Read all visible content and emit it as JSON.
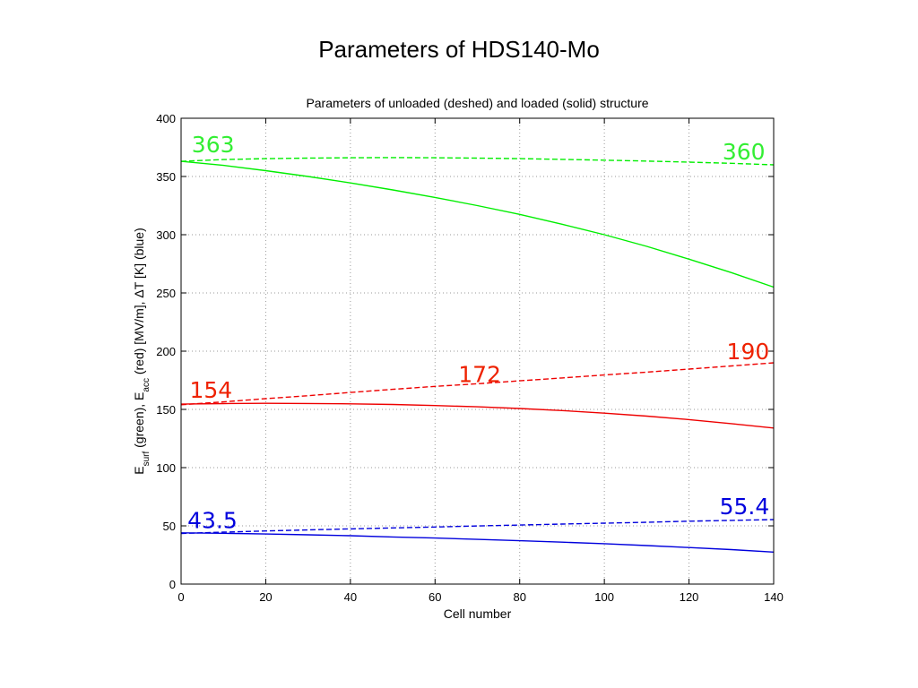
{
  "slide": {
    "title": "Parameters of HDS140-Mo"
  },
  "chart_data": {
    "type": "line",
    "title": "Parameters of unloaded (deshed) and loaded (solid) structure",
    "xlabel": "Cell number",
    "ylabel": {
      "part1": "E",
      "sub1": "surf",
      "part2": " (green), E",
      "sub2": "acc",
      "part3": " (red) [MV/m], ",
      "delta": "Δ",
      "part4": "T [K] (blue)"
    },
    "xlim": [
      0,
      140
    ],
    "ylim": [
      0,
      400
    ],
    "xticks": [
      0,
      20,
      40,
      60,
      80,
      100,
      120,
      140
    ],
    "yticks": [
      0,
      50,
      100,
      150,
      200,
      250,
      300,
      350,
      400
    ],
    "grid": true,
    "box": true,
    "series": [
      {
        "color": "#00ee00",
        "dash": true,
        "x": [
          0,
          10,
          20,
          30,
          40,
          50,
          60,
          70,
          80,
          90,
          100,
          110,
          120,
          130,
          140
        ],
        "y": [
          363,
          364.5,
          365.3,
          365.8,
          366.1,
          366.2,
          366.1,
          365.8,
          365.3,
          364.7,
          364.0,
          363.2,
          362.3,
          361.3,
          360
        ]
      },
      {
        "color": "#00ee00",
        "dash": false,
        "x": [
          0,
          10,
          20,
          30,
          40,
          50,
          60,
          70,
          80,
          90,
          100,
          110,
          120,
          130,
          140
        ],
        "y": [
          363,
          359.5,
          355,
          350,
          344.5,
          338.5,
          332,
          325,
          317.5,
          309,
          300,
          290,
          279,
          267.5,
          255
        ]
      },
      {
        "color": "#ee0000",
        "dash": true,
        "x": [
          0,
          10,
          20,
          30,
          40,
          50,
          60,
          70,
          80,
          90,
          100,
          110,
          120,
          130,
          140
        ],
        "y": [
          154,
          156.5,
          159.2,
          161.8,
          164.5,
          167.2,
          169.8,
          172,
          174.5,
          177,
          179.5,
          182,
          184.6,
          187.3,
          190
        ]
      },
      {
        "color": "#ee0000",
        "dash": false,
        "x": [
          0,
          10,
          20,
          30,
          40,
          50,
          60,
          70,
          80,
          90,
          100,
          110,
          120,
          130,
          140
        ],
        "y": [
          154.5,
          155,
          155.2,
          155.1,
          154.8,
          154.2,
          153.3,
          152.2,
          150.8,
          149,
          146.8,
          144.2,
          141.2,
          137.8,
          134
        ]
      },
      {
        "color": "#0000dd",
        "dash": true,
        "x": [
          0,
          10,
          20,
          30,
          40,
          50,
          60,
          70,
          80,
          90,
          100,
          110,
          120,
          130,
          140
        ],
        "y": [
          43.5,
          44.6,
          45.6,
          46.5,
          47.4,
          48.2,
          49,
          49.9,
          50.7,
          51.5,
          52.3,
          53.1,
          54,
          54.7,
          55.4
        ]
      },
      {
        "color": "#0000dd",
        "dash": false,
        "x": [
          0,
          10,
          20,
          30,
          40,
          50,
          60,
          70,
          80,
          90,
          100,
          110,
          120,
          130,
          140
        ],
        "y": [
          44,
          43.6,
          43,
          42.3,
          41.5,
          40.5,
          39.5,
          38.4,
          37.2,
          36,
          34.7,
          33.1,
          31.4,
          29.6,
          27.5
        ]
      }
    ],
    "annotations": [
      {
        "text": "363",
        "color": "#33ee33",
        "x": 2.5,
        "y": 363,
        "anchor": "start",
        "dy": -10
      },
      {
        "text": "360",
        "color": "#33ee33",
        "x": 138,
        "y": 360,
        "anchor": "end",
        "dy": -6
      },
      {
        "text": "154",
        "color": "#ee2200",
        "x": 2,
        "y": 154,
        "anchor": "start",
        "dy": -8
      },
      {
        "text": "172",
        "color": "#ee2200",
        "x": 65.5,
        "y": 172,
        "anchor": "start",
        "dy": -2
      },
      {
        "text": "190",
        "color": "#ee2200",
        "x": 139,
        "y": 190,
        "anchor": "end",
        "dy": -4
      },
      {
        "text": "43.5",
        "color": "#0000dd",
        "x": 1.5,
        "y": 43.5,
        "anchor": "start",
        "dy": -6
      },
      {
        "text": "55.4",
        "color": "#0000dd",
        "x": 139,
        "y": 55.4,
        "anchor": "end",
        "dy": -6
      }
    ]
  }
}
